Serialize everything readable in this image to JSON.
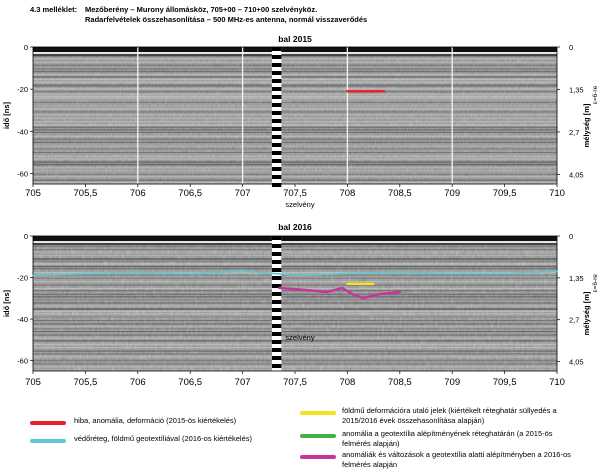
{
  "header": {
    "label": "4.3 melléklet:",
    "line1": "Mezőberény – Murony állomásköz, 705+00 – 710+00 szelvényköz.",
    "line2": "Radarfelvételek összehasonlítása – 500 MHz-es antenna, normál visszaverődés"
  },
  "chart_data": [
    {
      "type": "heatmap",
      "title": "bal 2015",
      "xlabel": "szelvény",
      "ylabel": "idő [ns]",
      "y2label": "mélység [m]",
      "y2note": "ε=6-re",
      "xlim": [
        705,
        710
      ],
      "ylim": [
        -65,
        0
      ],
      "xticks": [
        "705",
        "705,5",
        "706",
        "706,5",
        "707",
        "707,5",
        "708",
        "708,5",
        "709",
        "709,5",
        "710"
      ],
      "yticks": [
        "-60",
        "-40",
        "-20",
        "0"
      ],
      "y2ticks": [
        "0",
        "1,35",
        "2,7",
        "4,05"
      ],
      "marker_lines_x": [
        706,
        707,
        708,
        709
      ],
      "annotations": [
        {
          "kind": "fault",
          "x": [
            708.0,
            708.35
          ],
          "y": [
            -21,
            -21
          ]
        }
      ]
    },
    {
      "type": "heatmap",
      "title": "bal 2016",
      "xlabel": "szelvény",
      "ylabel": "idő [ns]",
      "y2label": "mélység [m]",
      "y2note": "ε=6-re",
      "xlim": [
        705,
        710
      ],
      "ylim": [
        -65,
        0
      ],
      "xticks": [
        "705",
        "705,5",
        "706",
        "706,5",
        "707",
        "707,5",
        "708",
        "708,5",
        "709",
        "709,5",
        "710"
      ],
      "yticks": [
        "-60",
        "-40",
        "-20",
        "0"
      ],
      "y2ticks": [
        "0",
        "1,35",
        "2,7",
        "4,05"
      ],
      "annotations": [
        {
          "kind": "protective",
          "x": [
            705.0,
            705.5,
            706.0,
            706.5,
            707.0,
            707.3,
            707.5,
            708.0,
            708.5,
            709.0,
            709.5,
            710.0
          ],
          "y": [
            -19,
            -18,
            -17.5,
            -18,
            -17,
            -18,
            -19,
            -18,
            -17.5,
            -18,
            -18,
            -17
          ]
        },
        {
          "kind": "deformation",
          "x": [
            708.0,
            708.25
          ],
          "y": [
            -23,
            -23
          ]
        },
        {
          "kind": "sub_anomaly",
          "x": [
            707.35,
            707.6,
            707.8,
            707.95,
            708.05,
            708.15,
            708.3,
            708.5
          ],
          "y": [
            -25,
            -26,
            -27,
            -25,
            -28,
            -30,
            -28,
            -27
          ]
        }
      ]
    }
  ],
  "legend": [
    {
      "kind": "fault",
      "color": "#e8202a",
      "text": "hiba, anomália, deformáció (2015-ös kiértékelés)"
    },
    {
      "kind": "protective",
      "color": "#5ec8d6",
      "text": "védőréteg, földmű geotextíliával (2016-os kiértékelés)"
    },
    {
      "kind": "deformation",
      "color": "#f4e21e",
      "text": "földmű deformációra utaló jelek (kiértékelt réteghatár süllyedés a 2015/2016 évek összehasonlítása alapján)"
    },
    {
      "kind": "base_anomaly",
      "color": "#44b04a",
      "text": "anomália a geotextília alépítményének réteghatárán (a 2015-ös felmérés alapján)"
    },
    {
      "kind": "sub_anomaly",
      "color": "#c8359a",
      "text": "anomáliák és változások a geotextília alatti alépítményben a 2016-os felmérés alapján"
    }
  ]
}
